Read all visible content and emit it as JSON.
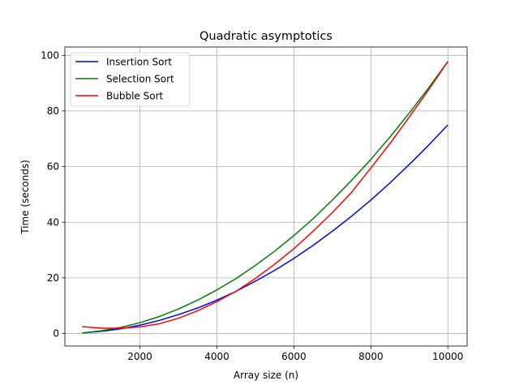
{
  "chart_data": {
    "type": "line",
    "title": "Quadratic asymptotics",
    "xlabel": "Array size (n)",
    "ylabel": "Time (seconds)",
    "xlim": [
      50,
      10500
    ],
    "ylim": [
      -4.5,
      103
    ],
    "x_ticks": [
      2000,
      4000,
      6000,
      8000,
      10000
    ],
    "y_ticks": [
      0,
      20,
      40,
      60,
      80,
      100
    ],
    "grid": true,
    "legend_position": "top-left",
    "x": [
      500,
      1000,
      1500,
      2000,
      2500,
      3000,
      3500,
      4000,
      4500,
      5000,
      5500,
      6000,
      6500,
      7000,
      7500,
      8000,
      8500,
      9000,
      9500,
      10000
    ],
    "series": [
      {
        "name": "Insertion Sort",
        "color": "#0000ff",
        "values": [
          0.2,
          0.8,
          1.7,
          3.0,
          4.7,
          6.8,
          9.2,
          12.0,
          15.2,
          18.8,
          22.7,
          27.0,
          31.7,
          36.8,
          42.2,
          48.0,
          54.2,
          60.8,
          67.7,
          75.0
        ]
      },
      {
        "name": "Selection Sort",
        "color": "#008000",
        "values": [
          0.2,
          1.0,
          2.2,
          3.9,
          6.1,
          8.8,
          12.0,
          15.7,
          19.8,
          24.5,
          29.6,
          35.2,
          41.3,
          48.0,
          55.1,
          62.6,
          70.7,
          79.3,
          88.3,
          97.8
        ]
      },
      {
        "name": "Bubble Sort",
        "color": "#ff0000",
        "values": [
          2.5,
          1.9,
          1.9,
          2.4,
          3.5,
          5.5,
          8.2,
          11.5,
          15.2,
          19.8,
          24.9,
          30.5,
          36.8,
          43.5,
          50.8,
          59.5,
          68.4,
          77.9,
          87.6,
          97.8
        ]
      }
    ]
  }
}
